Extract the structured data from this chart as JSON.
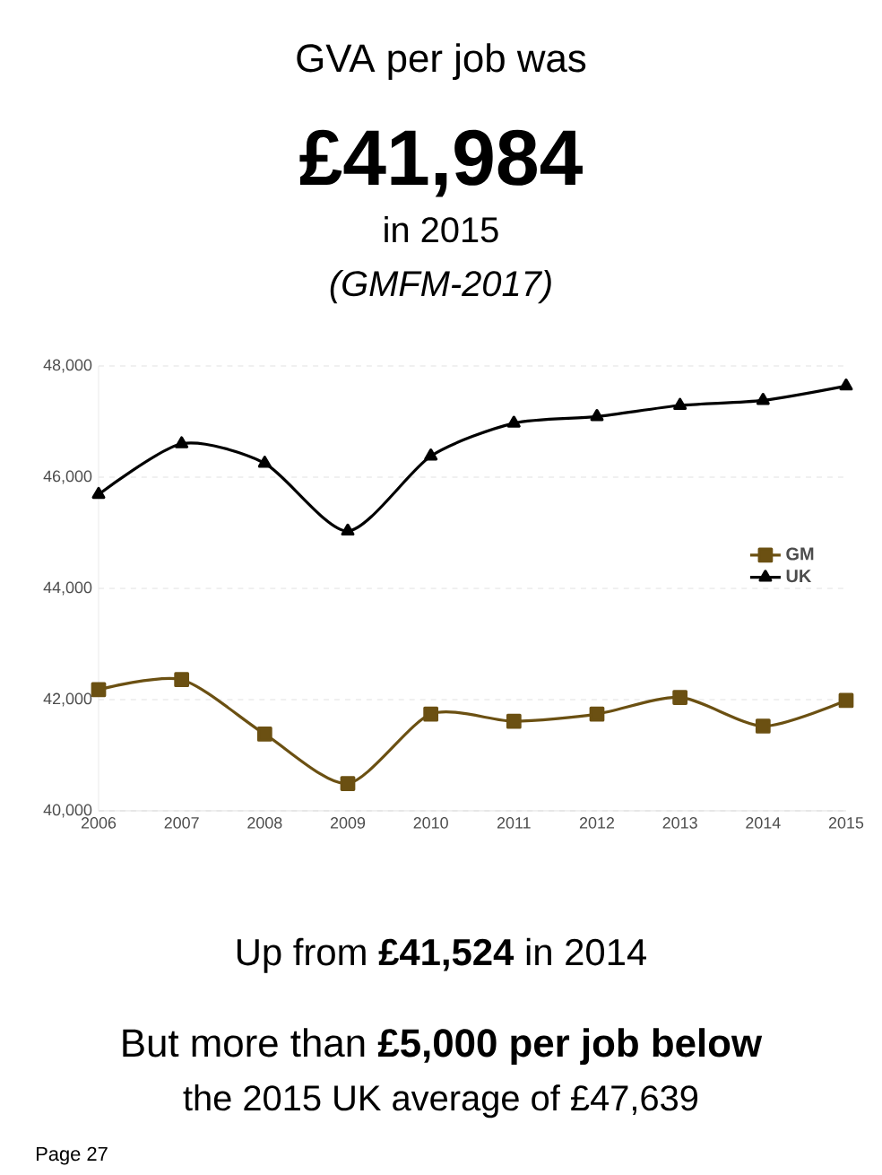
{
  "chart_data": {
    "type": "line",
    "title": "GVA per job was",
    "subtitle": "£41,984",
    "annotations": [
      "in 2015",
      "(GMFM-2017)",
      "Up from **£41,524** in 2014",
      "But more than **£5,000 per job below**",
      "the 2015 UK average of £47,639",
      "Page 27"
    ],
    "categories": [
      "2006",
      "2007",
      "2008",
      "2009",
      "2010",
      "2011",
      "2012",
      "2013",
      "2014",
      "2015"
    ],
    "series": [
      {
        "name": "GM",
        "color": "#6b5012",
        "marker": "square",
        "values": [
          42180,
          42360,
          41380,
          40490,
          41740,
          41610,
          41740,
          42040,
          41524,
          41984
        ]
      },
      {
        "name": "UK",
        "color": "#000000",
        "marker": "triangle",
        "values": [
          45690,
          46600,
          46250,
          45030,
          46380,
          46970,
          47090,
          47290,
          47380,
          47639
        ]
      }
    ],
    "ylim": [
      40000,
      48000
    ],
    "yticks": [
      {
        "value": 40000,
        "label": "40,000"
      },
      {
        "value": 42000,
        "label": "42,000"
      },
      {
        "value": 44000,
        "label": "44,000"
      },
      {
        "value": 46000,
        "label": "46,000"
      },
      {
        "value": 48000,
        "label": "48,000"
      }
    ],
    "grid": "y",
    "legend": "right",
    "line_style": "solid"
  }
}
